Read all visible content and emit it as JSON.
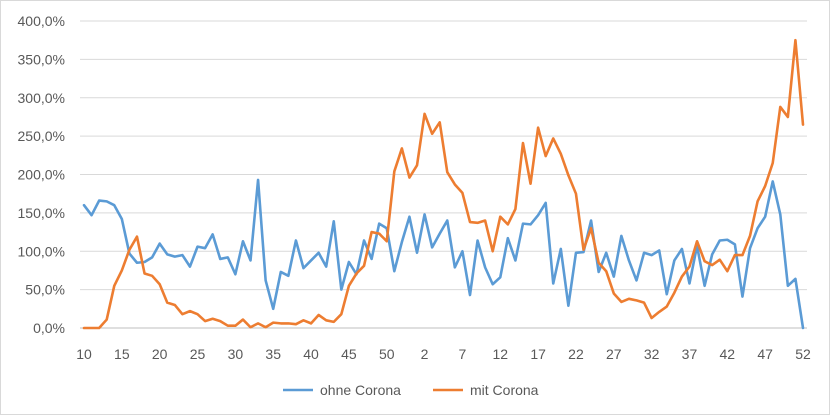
{
  "chart_data": {
    "type": "line",
    "y_format": "percent_comma_1",
    "ylim": [
      0,
      400
    ],
    "y_ticks": [
      0,
      50,
      100,
      150,
      200,
      250,
      300,
      350,
      400
    ],
    "y_tick_labels": [
      "0,0%",
      "50,0%",
      "100,0%",
      "150,0%",
      "200,0%",
      "250,0%",
      "300,0%",
      "350,0%",
      "400,0%"
    ],
    "x": [
      "10",
      "11",
      "12",
      "13",
      "14",
      "15",
      "16",
      "17",
      "18",
      "19",
      "20",
      "21",
      "22",
      "23",
      "24",
      "25",
      "26",
      "27",
      "28",
      "29",
      "30",
      "31",
      "32",
      "33",
      "34",
      "35",
      "36",
      "37",
      "38",
      "39",
      "40",
      "41",
      "42",
      "43",
      "44",
      "45",
      "46",
      "47",
      "48",
      "49",
      "50",
      "51",
      "52",
      "53",
      "1",
      "2",
      "3",
      "4",
      "5",
      "6",
      "7",
      "8",
      "9",
      "10",
      "11",
      "12",
      "13",
      "14",
      "15",
      "16",
      "17",
      "18",
      "19",
      "20",
      "21",
      "22",
      "23",
      "24",
      "25",
      "26",
      "27",
      "28",
      "29",
      "30",
      "31",
      "32",
      "33",
      "34",
      "35",
      "36",
      "37",
      "38",
      "39",
      "40",
      "41",
      "42",
      "43",
      "44",
      "45",
      "46",
      "47",
      "48",
      "49",
      "50",
      "51",
      "52"
    ],
    "x_tick_labels": [
      "10",
      "15",
      "20",
      "25",
      "30",
      "35",
      "40",
      "45",
      "50",
      "2",
      "7",
      "12",
      "17",
      "22",
      "27",
      "32",
      "37",
      "42",
      "47",
      "52"
    ],
    "x_tick_every": 5,
    "grid": "horizontal",
    "legend_position": "bottom",
    "series": [
      {
        "name": "ohne Corona",
        "color": "#5b9bd5",
        "values": [
          160,
          147,
          166,
          165,
          160,
          142,
          97,
          85,
          86,
          92,
          110,
          96,
          93,
          95,
          80,
          106,
          104,
          122,
          90,
          92,
          70,
          113,
          88,
          193,
          62,
          25,
          73,
          68,
          114,
          78,
          88,
          98,
          80,
          139,
          50,
          86,
          70,
          114,
          90,
          136,
          130,
          74,
          112,
          145,
          98,
          148,
          105,
          123,
          140,
          79,
          100,
          43,
          114,
          79,
          57,
          66,
          117,
          88,
          136,
          135,
          147,
          163,
          58,
          103,
          29,
          98,
          99,
          140,
          73,
          98,
          67,
          120,
          88,
          62,
          98,
          95,
          101,
          44,
          88,
          103,
          58,
          107,
          55,
          96,
          114,
          115,
          109,
          41,
          104,
          130,
          145,
          191,
          148,
          55,
          64,
          0
        ]
      },
      {
        "name": "mit Corona",
        "color": "#ed7d31",
        "values": [
          0,
          0,
          0,
          11,
          55,
          75,
          102,
          119,
          71,
          68,
          57,
          33,
          30,
          18,
          22,
          18,
          9,
          12,
          9,
          3,
          3,
          11,
          1,
          6,
          1,
          7,
          6,
          6,
          5,
          10,
          6,
          17,
          10,
          8,
          18,
          55,
          71,
          81,
          125,
          123,
          113,
          204,
          234,
          196,
          212,
          279,
          253,
          268,
          203,
          187,
          176,
          138,
          137,
          140,
          100,
          145,
          135,
          155,
          241,
          188,
          261,
          224,
          247,
          227,
          199,
          175,
          102,
          130,
          85,
          74,
          45,
          34,
          38,
          36,
          33,
          13,
          21,
          28,
          46,
          67,
          80,
          113,
          87,
          82,
          89,
          74,
          95,
          95,
          120,
          165,
          185,
          215,
          288,
          275,
          375,
          265
        ]
      }
    ]
  }
}
